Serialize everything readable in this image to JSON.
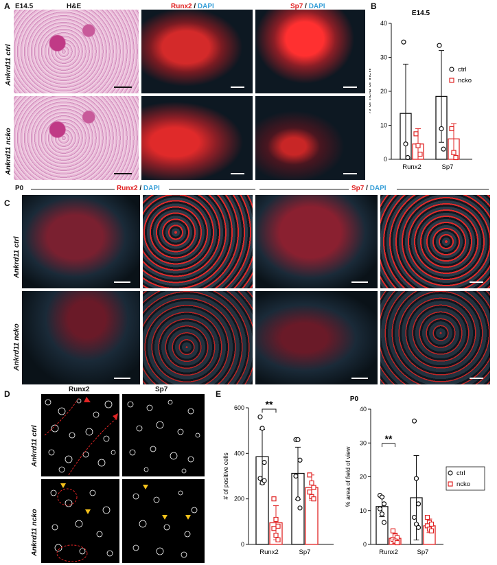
{
  "panels": {
    "A": {
      "label": "A",
      "stage": "E14.5",
      "he_title": "H&E",
      "col2_marker": "Runx2",
      "col3_marker": "Sp7",
      "stain_sep": " / ",
      "dapi": "DAPI",
      "row1": "Ankrd11 ctrl",
      "row2": "Ankrd11 ncko"
    },
    "B": {
      "label": "B"
    },
    "C": {
      "label": "C",
      "stage": "P0",
      "runx2": "Runx2",
      "sp7": "Sp7",
      "stain_sep": " / ",
      "dapi": "DAPI",
      "row1": "Ankrd11 ctrl",
      "row2": "Ankrd11 ncko"
    },
    "D": {
      "label": "D",
      "col1": "Runx2",
      "col2": "Sp7",
      "row1": "Ankrd11 ctrl",
      "row2": "Ankrd11 ncko"
    },
    "E": {
      "label": "E",
      "stage": "P0"
    }
  },
  "colors": {
    "ctrl": "#111111",
    "ncko": "#e02424",
    "runx2": "#e01f1f",
    "dapi": "#3aa0d8"
  },
  "chart_data": [
    {
      "id": "B",
      "type": "bar",
      "title": "E14.5",
      "ylabel": "% of field of view",
      "ylim": [
        0,
        40
      ],
      "yticks": [
        0,
        10,
        20,
        30,
        40
      ],
      "categories": [
        "Runx2",
        "Sp7"
      ],
      "legend": {
        "entries": [
          "ctrl",
          "ncko"
        ],
        "placement": "right"
      },
      "series": [
        {
          "name": "ctrl",
          "values": [
            13.5,
            18.5
          ],
          "error": [
            14.5,
            13.5
          ],
          "points": [
            [
              34.5,
              4.5,
              0.5
            ],
            [
              33.5,
              9.0,
              3.0
            ]
          ]
        },
        {
          "name": "ncko",
          "values": [
            4.5,
            6.0
          ],
          "error": [
            4.5,
            4.5
          ],
          "points": [
            [
              7.5,
              4.0,
              1.5
            ],
            [
              9.0,
              2.0,
              0.5
            ]
          ]
        }
      ]
    },
    {
      "id": "E-left",
      "type": "bar",
      "ylabel": "# of positive cells",
      "ylim": [
        0,
        600
      ],
      "yticks": [
        0,
        200,
        400,
        600
      ],
      "categories": [
        "Runx2",
        "Sp7"
      ],
      "significance": {
        "text": "**",
        "between": "Runx2"
      },
      "series": [
        {
          "name": "ctrl",
          "values": [
            385,
            312
          ],
          "error": [
            120,
            115
          ],
          "points": [
            [
              560,
              510,
              360,
              290,
              270,
              280
            ],
            [
              460,
              460,
              370,
              300,
              200,
              160
            ]
          ]
        },
        {
          "name": "ncko",
          "values": [
            95,
            250
          ],
          "error": [
            75,
            55
          ],
          "points": [
            [
              200,
              110,
              80,
              70,
              40,
              20
            ],
            [
              305,
              270,
              250,
              230,
              210,
              200
            ]
          ]
        }
      ]
    },
    {
      "id": "E-right",
      "type": "bar",
      "title": "P0",
      "ylabel": "% area of field of view",
      "ylim": [
        0,
        40
      ],
      "yticks": [
        0,
        10,
        20,
        30,
        40
      ],
      "categories": [
        "Runx2",
        "Sp7"
      ],
      "significance": {
        "text": "**",
        "between": "Runx2"
      },
      "legend": {
        "entries": [
          "ctrl",
          "ncko"
        ],
        "placement": "right"
      },
      "series": [
        {
          "name": "ctrl",
          "values": [
            11.2,
            13.8
          ],
          "error": [
            3.0,
            12.5
          ],
          "points": [
            [
              14.5,
              14.0,
              12.0,
              10.5,
              9.0,
              6.5
            ],
            [
              36.5,
              19.5,
              12.0,
              8.0,
              6.0,
              5.0
            ]
          ]
        },
        {
          "name": "ncko",
          "values": [
            1.8,
            5.5
          ],
          "error": [
            1.5,
            2.0
          ],
          "points": [
            [
              4.0,
              2.5,
              2.0,
              1.5,
              1.0,
              0.5
            ],
            [
              8.0,
              6.5,
              6.0,
              5.5,
              4.5,
              4.0
            ]
          ]
        }
      ]
    }
  ]
}
